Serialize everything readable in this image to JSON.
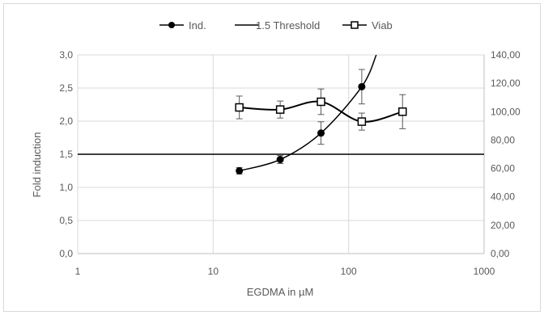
{
  "chart_data": {
    "type": "scatter",
    "xscale": "log",
    "xlim": [
      1,
      1000
    ],
    "ylim_left": [
      0,
      3
    ],
    "ylim_right": [
      0,
      140
    ],
    "grid": true,
    "legend_position": "top",
    "xlabel": "EGDMA in µM",
    "ylabel": "Fold induction",
    "x_ticks": [
      "1",
      "10",
      "100",
      "1000"
    ],
    "y_left_ticks": [
      "0,0",
      "0,5",
      "1,0",
      "1,5",
      "2,0",
      "2,5",
      "3,0"
    ],
    "y_right_ticks": [
      "0,00",
      "20,00",
      "40,00",
      "60,00",
      "80,00",
      "100,00",
      "120,00",
      "140,00"
    ],
    "threshold": 1.5,
    "series": [
      {
        "name": "Ind.",
        "axis": "left",
        "marker": "filled-circle",
        "color": "#000000",
        "x": [
          15.6,
          31.25,
          62.5,
          125
        ],
        "y": [
          1.25,
          1.42,
          1.82,
          2.52
        ],
        "err": [
          0.05,
          0.06,
          0.17,
          0.26
        ],
        "trend_extension_y_at_160": 3.0
      },
      {
        "name": "1.5 Threshold",
        "axis": "left",
        "marker": "line",
        "color": "#000000"
      },
      {
        "name": "Viab",
        "axis": "right",
        "marker": "open-square",
        "color": "#000000",
        "x": [
          15.6,
          31.25,
          62.5,
          125,
          250
        ],
        "y": [
          103,
          101.5,
          107,
          93,
          100
        ],
        "err": [
          8,
          6,
          9,
          6,
          12
        ]
      }
    ]
  }
}
